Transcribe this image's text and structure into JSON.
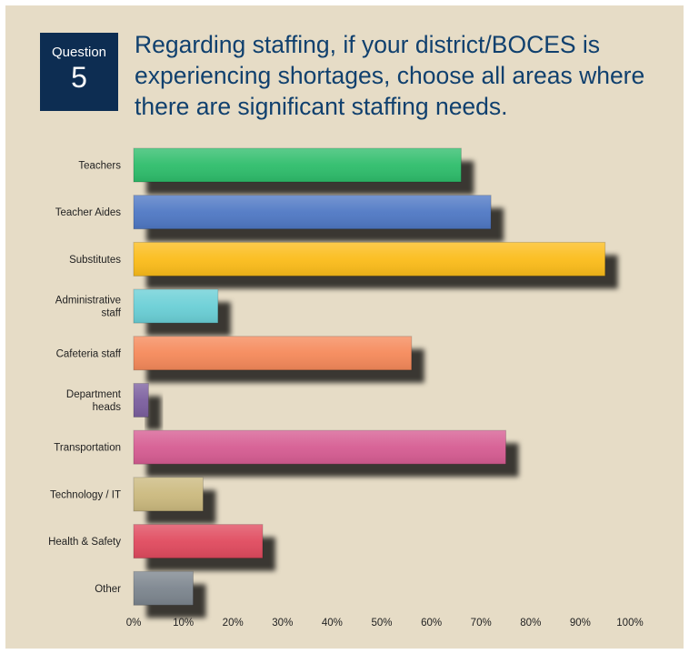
{
  "question": {
    "word": "Question",
    "number": "5",
    "text": "Regarding staffing, if your district/BOCES is experiencing shortages, choose all areas where there are significant staffing needs."
  },
  "chart_data": {
    "type": "bar",
    "orientation": "horizontal",
    "categories": [
      [
        "Teachers"
      ],
      [
        "Teacher Aides"
      ],
      [
        "Substitutes"
      ],
      [
        "Administrative",
        "staff"
      ],
      [
        "Cafeteria staff"
      ],
      [
        "Department",
        "heads"
      ],
      [
        "Transportation"
      ],
      [
        "Technology / IT"
      ],
      [
        "Health & Safety"
      ],
      [
        "Other"
      ]
    ],
    "values": [
      66,
      72,
      95,
      17,
      56,
      3,
      75,
      14,
      26,
      12
    ],
    "colors": [
      "#2ebd6b",
      "#4f78c4",
      "#fbbc1a",
      "#6acfd6",
      "#f5895a",
      "#7b5e9e",
      "#d65c92",
      "#cbb97e",
      "#e04a5e",
      "#7c858e"
    ],
    "x_ticks": [
      "0%",
      "10%",
      "20%",
      "30%",
      "40%",
      "50%",
      "60%",
      "70%",
      "80%",
      "90%",
      "100%"
    ],
    "xlim": [
      0,
      100
    ],
    "grid": false,
    "legend": "none"
  }
}
